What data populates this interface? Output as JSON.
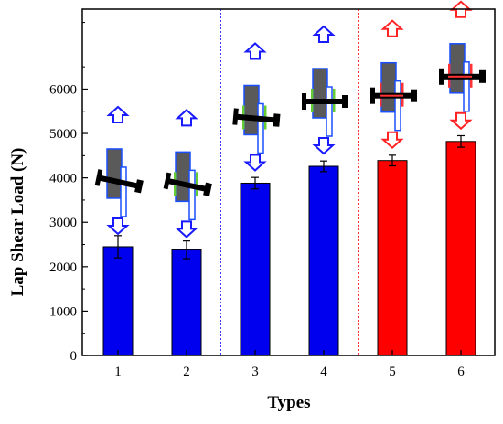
{
  "chart_data": {
    "type": "bar",
    "categories": [
      "1",
      "2",
      "3",
      "4",
      "5",
      "6"
    ],
    "values": [
      2450,
      2380,
      3880,
      4260,
      4390,
      4820
    ],
    "errors": [
      250,
      200,
      130,
      120,
      120,
      130
    ],
    "bar_colors": [
      "#0000ee",
      "#0000ee",
      "#0000ee",
      "#0000ee",
      "#ff0000",
      "#ff0000"
    ],
    "xlabel": "Types",
    "ylabel": "Lap Shear Load (N)",
    "ylim": [
      0,
      7800
    ],
    "yticks": [
      0,
      1000,
      2000,
      3000,
      4000,
      5000,
      6000
    ],
    "grid": false,
    "dividers": [
      {
        "after_category_index": 1,
        "color": "#3a3aff",
        "style": "dotted"
      },
      {
        "after_category_index": 3,
        "color": "#ff3333",
        "style": "dotted"
      }
    ],
    "schematics": [
      {
        "category": "1",
        "fastener_angle": "tilted",
        "arrow_color": "#1a1aff",
        "ring_color": "none"
      },
      {
        "category": "2",
        "fastener_angle": "tilted",
        "arrow_color": "#1a1aff",
        "ring_color": "#66cc33"
      },
      {
        "category": "3",
        "fastener_angle": "slight-tilt",
        "arrow_color": "#1a1aff",
        "ring_color": "#66cc33"
      },
      {
        "category": "4",
        "fastener_angle": "straight",
        "arrow_color": "#1a1aff",
        "ring_color": "#66cc33"
      },
      {
        "category": "5",
        "fastener_angle": "straight",
        "arrow_color": "#ff2222",
        "ring_color": "#ff3333"
      },
      {
        "category": "6",
        "fastener_angle": "straight",
        "arrow_color": "#ff2222",
        "ring_color": "#ff3333"
      }
    ]
  }
}
